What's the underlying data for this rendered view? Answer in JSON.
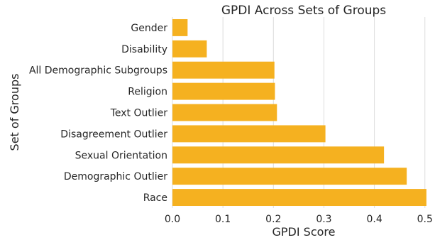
{
  "chart_data": {
    "type": "bar",
    "orientation": "horizontal",
    "title": "GPDI Across Sets of Groups",
    "xlabel": "GPDI Score",
    "ylabel": "Set of Groups",
    "categories": [
      "Gender",
      "Disability",
      "All Demographic Subgroups",
      "Religion",
      "Text Outlier",
      "Disagreement Outlier",
      "Sexual Orientation",
      "Demographic Outlier",
      "Race"
    ],
    "values": [
      0.03,
      0.068,
      0.202,
      0.203,
      0.207,
      0.303,
      0.419,
      0.464,
      0.503
    ],
    "xlim": [
      0.0,
      0.52
    ],
    "xticks": [
      0.0,
      0.1,
      0.2,
      0.3,
      0.4,
      0.5
    ],
    "xtick_labels": [
      "0.0",
      "0.1",
      "0.2",
      "0.3",
      "0.4",
      "0.5"
    ],
    "grid": true,
    "bar_color": "#F5B120",
    "grid_color": "#DCDCDC"
  }
}
